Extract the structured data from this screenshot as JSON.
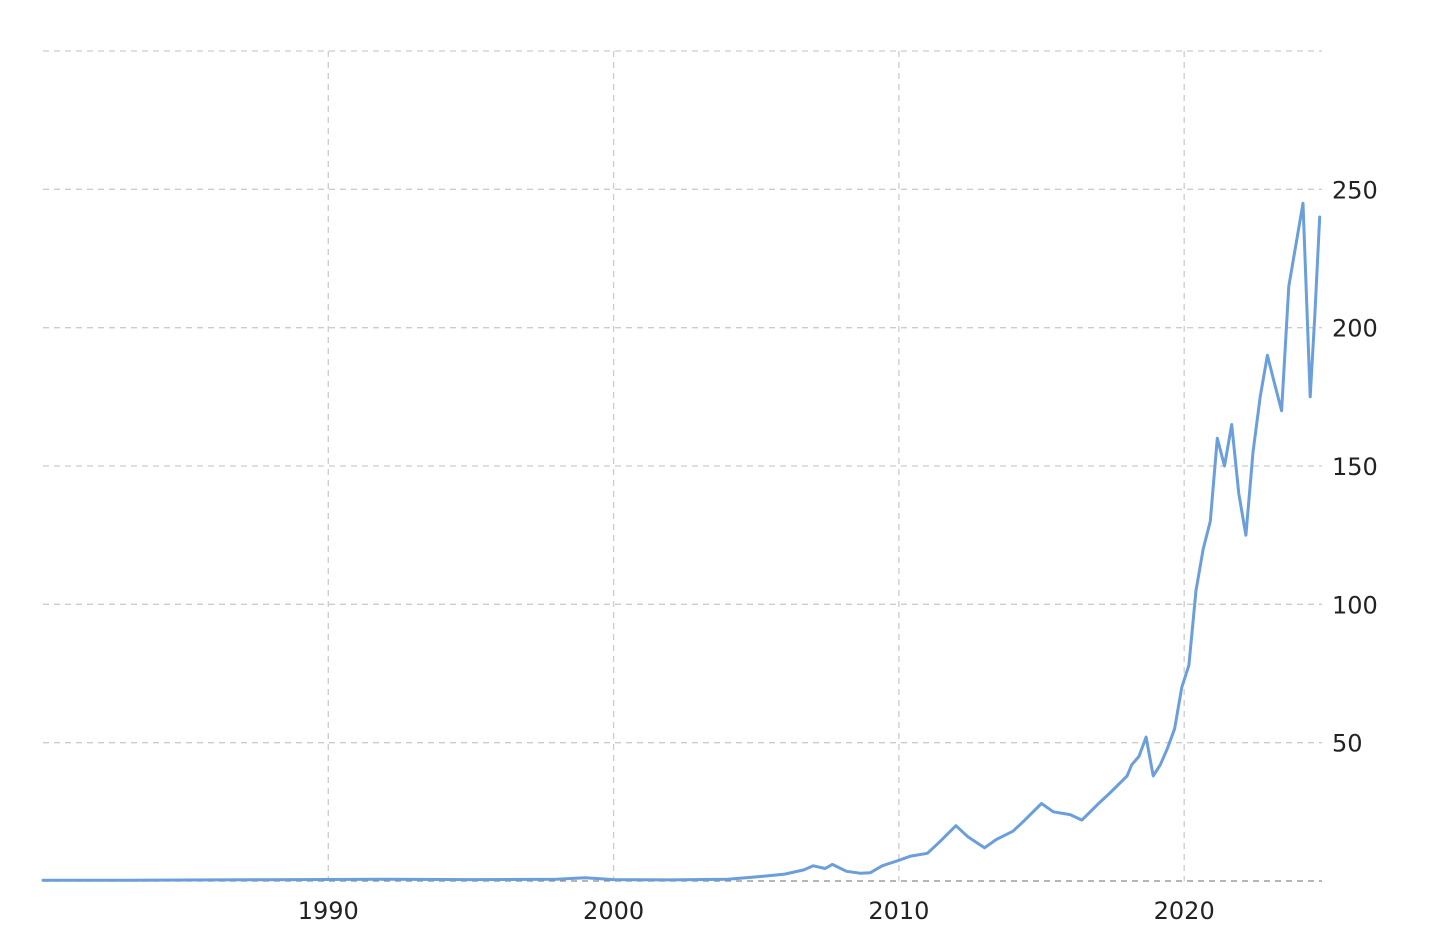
{
  "chart_data": {
    "type": "line",
    "title": "",
    "xlabel": "",
    "ylabel": "",
    "x_tick_labels": [
      "1990",
      "2000",
      "2010",
      "2020"
    ],
    "y_tick_labels": [
      "50",
      "100",
      "150",
      "200",
      "250"
    ],
    "xlim": [
      "1980-01-01",
      "2024-10-31"
    ],
    "ylim": [
      0,
      300
    ],
    "grid": true,
    "legend": "none",
    "colors": {
      "line": "#6a9fdb",
      "grid": "#cccccc",
      "axis": "#8a8a8a"
    },
    "series": [
      {
        "x": [
          "1980-01-01",
          "1983-01-01",
          "1986-01-01",
          "1989-01-01",
          "1992-01-01",
          "1995-01-01",
          "1998-01-01",
          "1999-01-01",
          "2000-01-01",
          "2002-01-01",
          "2004-01-01",
          "2005-01-01",
          "2006-01-01",
          "2006-09-01",
          "2007-01-01",
          "2007-06-01",
          "2007-09-01",
          "2008-03-01",
          "2008-09-01",
          "2009-01-01",
          "2009-06-01",
          "2010-01-01",
          "2010-06-01",
          "2011-01-01",
          "2011-06-01",
          "2012-01-01",
          "2012-06-01",
          "2013-01-01",
          "2013-06-01",
          "2014-01-01",
          "2014-06-01",
          "2015-01-01",
          "2015-06-01",
          "2016-01-01",
          "2016-06-01",
          "2017-01-01",
          "2017-06-01",
          "2018-01-01",
          "2018-03-01",
          "2018-06-01",
          "2018-09-01",
          "2018-12-01",
          "2019-03-01",
          "2019-06-01",
          "2019-09-01",
          "2019-12-01",
          "2020-03-01",
          "2020-06-01",
          "2020-09-01",
          "2020-12-01",
          "2021-03-01",
          "2021-06-01",
          "2021-09-01",
          "2021-12-01",
          "2022-03-01",
          "2022-06-01",
          "2022-09-01",
          "2022-12-01",
          "2023-03-01",
          "2023-06-01",
          "2023-09-01",
          "2023-12-01",
          "2024-03-01",
          "2024-06-01",
          "2024-08-01",
          "2024-10-01"
        ],
        "y": [
          0.3,
          0.3,
          0.4,
          0.5,
          0.6,
          0.5,
          0.6,
          1.2,
          0.5,
          0.4,
          0.6,
          1.5,
          2.5,
          4,
          5.5,
          4.5,
          6,
          3.5,
          2.8,
          3,
          5.5,
          7.5,
          9,
          10,
          14,
          20,
          16,
          12,
          15,
          18,
          22,
          28,
          25,
          24,
          22,
          28,
          32,
          38,
          42,
          45,
          52,
          38,
          42,
          48,
          55,
          70,
          78,
          105,
          120,
          130,
          160,
          150,
          165,
          140,
          125,
          155,
          175,
          190,
          180,
          170,
          215,
          230,
          245,
          175,
          205,
          240
        ]
      }
    ]
  }
}
